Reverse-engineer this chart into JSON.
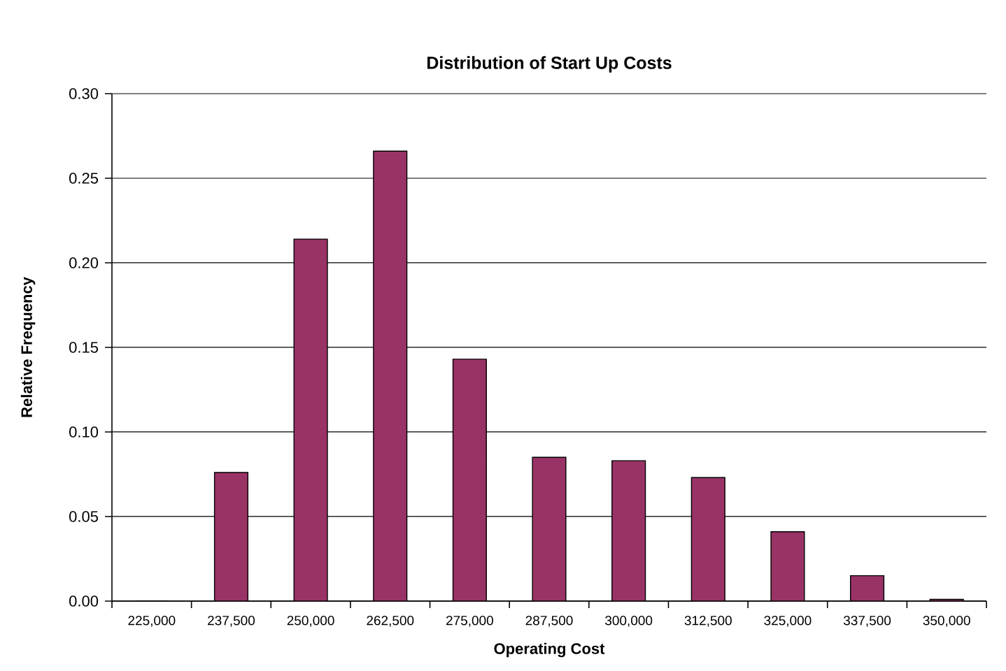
{
  "chart_data": {
    "type": "bar",
    "title": "Distribution of Start Up Costs",
    "xlabel": "Operating Cost",
    "ylabel": "Relative Frequency",
    "categories": [
      "225,000",
      "237,500",
      "250,000",
      "262,500",
      "275,000",
      "287,500",
      "300,000",
      "312,500",
      "325,000",
      "337,500",
      "350,000"
    ],
    "values": [
      0,
      0.076,
      0.214,
      0.266,
      0.143,
      0.085,
      0.083,
      0.073,
      0.041,
      0.015,
      0.001
    ],
    "color": "#993366",
    "ylim": [
      0,
      0.3
    ],
    "yticks": [
      {
        "value": 0,
        "label": "0.00"
      },
      {
        "value": 0.05,
        "label": "0.05"
      },
      {
        "value": 0.1,
        "label": "0.10"
      },
      {
        "value": 0.15,
        "label": "0.15"
      },
      {
        "value": 0.2,
        "label": "0.20"
      },
      {
        "value": 0.25,
        "label": "0.25"
      },
      {
        "value": 0.3,
        "label": "0.30"
      }
    ],
    "grid": "y"
  }
}
